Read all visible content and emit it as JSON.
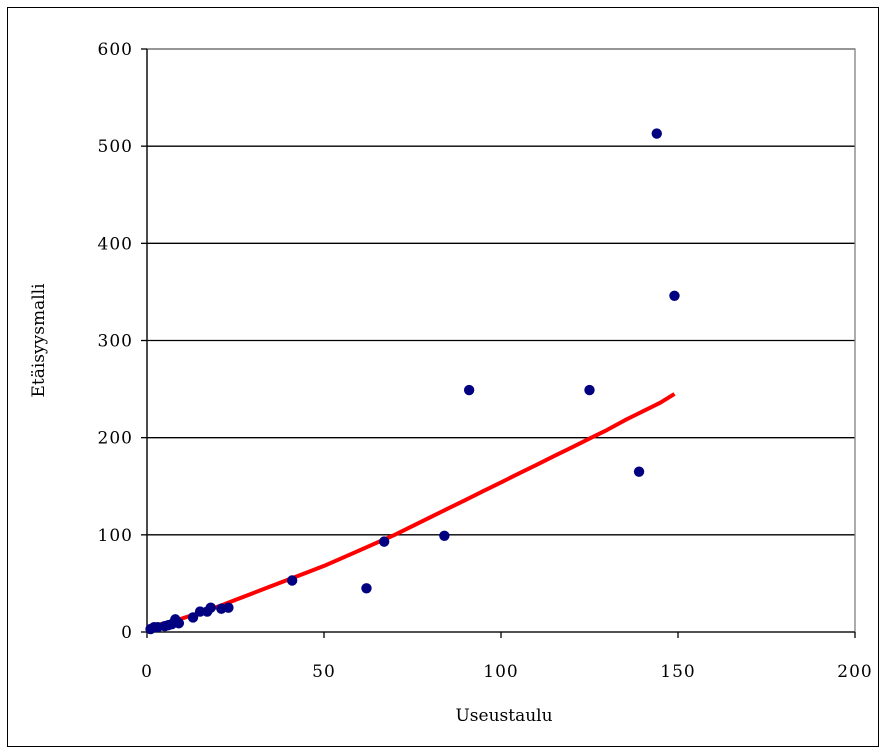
{
  "chart_data": {
    "type": "scatter",
    "title": "",
    "xlabel": "Useustaulu",
    "ylabel": "Etäisyysmalli",
    "xlim": [
      0,
      200
    ],
    "ylim": [
      0,
      600
    ],
    "xticks": [
      0,
      50,
      100,
      150,
      200
    ],
    "yticks": [
      0,
      100,
      200,
      300,
      400,
      500,
      600
    ],
    "grid": "horizontal",
    "legend": "none",
    "colors": {
      "points": "#000080",
      "trend": "#ff0000",
      "plot_border": "#808080"
    },
    "series": [
      {
        "type": "scatter",
        "points": [
          [
            1,
            3
          ],
          [
            2,
            5
          ],
          [
            3,
            5
          ],
          [
            5,
            6
          ],
          [
            6,
            7
          ],
          [
            7,
            8
          ],
          [
            8,
            10
          ],
          [
            8,
            13
          ],
          [
            9,
            9
          ],
          [
            13,
            15
          ],
          [
            15,
            21
          ],
          [
            17,
            21
          ],
          [
            18,
            25
          ],
          [
            21,
            24
          ],
          [
            23,
            25
          ],
          [
            41,
            53
          ],
          [
            62,
            45
          ],
          [
            67,
            93
          ],
          [
            84,
            99
          ],
          [
            91,
            249
          ],
          [
            125,
            249
          ],
          [
            139,
            165
          ],
          [
            144,
            513
          ],
          [
            149,
            346
          ]
        ]
      },
      {
        "type": "line",
        "points": [
          [
            0,
            5
          ],
          [
            5,
            9
          ],
          [
            10,
            14
          ],
          [
            15,
            20
          ],
          [
            20,
            26
          ],
          [
            25,
            33
          ],
          [
            30,
            40
          ],
          [
            35,
            47
          ],
          [
            40,
            54
          ],
          [
            45,
            61
          ],
          [
            50,
            68
          ],
          [
            55,
            76
          ],
          [
            60,
            84
          ],
          [
            65,
            92
          ],
          [
            70,
            100
          ],
          [
            75,
            109
          ],
          [
            80,
            118
          ],
          [
            85,
            127
          ],
          [
            90,
            136
          ],
          [
            95,
            145
          ],
          [
            100,
            154
          ],
          [
            105,
            163
          ],
          [
            110,
            172
          ],
          [
            115,
            181
          ],
          [
            120,
            190
          ],
          [
            125,
            199
          ],
          [
            130,
            208
          ],
          [
            135,
            218
          ],
          [
            140,
            227
          ],
          [
            145,
            236
          ],
          [
            149,
            245
          ]
        ]
      }
    ]
  }
}
